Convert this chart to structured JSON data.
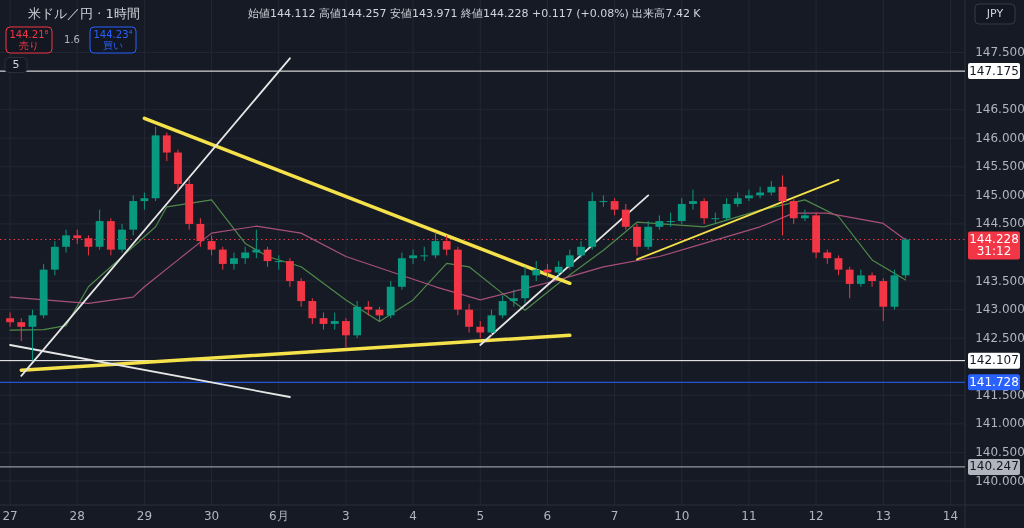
{
  "chart_data": {
    "type": "candlestick",
    "title": "米ドル／円 · 1時間",
    "annotations": [
      "始値144.112 高値144.257 安値143.971 終値144.228 +0.117 (+0.08%) 出来高7.42 K",
      "144.21⁸\n売り",
      "1.6",
      "144.23⁴\n買い",
      "5",
      "JPY"
    ],
    "categories": [
      "27",
      null,
      null,
      null,
      null,
      null,
      "28",
      null,
      null,
      null,
      null,
      null,
      "29",
      null,
      null,
      null,
      null,
      null,
      "30",
      null,
      null,
      null,
      null,
      null,
      "6月",
      null,
      null,
      null,
      null,
      null,
      "3",
      null,
      null,
      null,
      null,
      null,
      "4",
      null,
      null,
      null,
      null,
      null,
      "5",
      null,
      null,
      null,
      null,
      null,
      "6",
      null,
      null,
      null,
      null,
      null,
      "7",
      null,
      null,
      null,
      null,
      null,
      "10",
      null,
      null,
      null,
      null,
      null,
      "11",
      null,
      null,
      null,
      null,
      null,
      "12",
      null,
      null,
      null,
      null,
      null,
      "13",
      null,
      null,
      null,
      null,
      null,
      "14"
    ],
    "ohlc": [
      [
        142.85,
        142.95,
        142.7,
        142.78
      ],
      [
        142.78,
        142.85,
        142.45,
        142.7
      ],
      [
        142.7,
        143.0,
        142.11,
        142.9
      ],
      [
        142.9,
        143.8,
        142.85,
        143.7
      ],
      [
        143.7,
        144.2,
        143.6,
        144.1
      ],
      [
        144.1,
        144.4,
        144.0,
        144.3
      ],
      [
        144.3,
        144.4,
        144.15,
        144.25
      ],
      [
        144.25,
        144.3,
        143.95,
        144.1
      ],
      [
        144.1,
        144.75,
        144.05,
        144.55
      ],
      [
        144.55,
        144.6,
        143.95,
        144.05
      ],
      [
        144.05,
        144.5,
        144.0,
        144.4
      ],
      [
        144.4,
        145.0,
        144.3,
        144.9
      ],
      [
        144.9,
        145.05,
        144.75,
        144.95
      ],
      [
        144.95,
        146.2,
        144.9,
        146.05
      ],
      [
        146.05,
        146.1,
        145.6,
        145.75
      ],
      [
        145.75,
        145.8,
        145.1,
        145.2
      ],
      [
        145.2,
        145.3,
        144.4,
        144.5
      ],
      [
        144.5,
        144.6,
        144.1,
        144.2
      ],
      [
        144.2,
        144.3,
        143.95,
        144.05
      ],
      [
        144.05,
        144.1,
        143.7,
        143.8
      ],
      [
        143.8,
        144.0,
        143.7,
        143.9
      ],
      [
        143.9,
        144.1,
        143.8,
        144.0
      ],
      [
        144.0,
        144.4,
        143.9,
        144.05
      ],
      [
        144.05,
        144.1,
        143.75,
        143.85
      ],
      [
        143.85,
        143.95,
        143.7,
        143.85
      ],
      [
        143.85,
        143.9,
        143.4,
        143.5
      ],
      [
        143.5,
        143.55,
        143.05,
        143.15
      ],
      [
        143.15,
        143.2,
        142.75,
        142.85
      ],
      [
        142.85,
        142.95,
        142.65,
        142.75
      ],
      [
        142.75,
        142.95,
        142.65,
        142.8
      ],
      [
        142.8,
        142.85,
        142.34,
        142.55
      ],
      [
        142.55,
        143.15,
        142.5,
        143.05
      ],
      [
        143.05,
        143.15,
        142.9,
        143.0
      ],
      [
        143.0,
        143.05,
        142.8,
        142.9
      ],
      [
        142.9,
        143.5,
        142.85,
        143.4
      ],
      [
        143.4,
        144.0,
        143.35,
        143.9
      ],
      [
        143.9,
        144.05,
        143.8,
        143.95
      ],
      [
        143.95,
        144.1,
        143.85,
        143.95
      ],
      [
        143.95,
        144.35,
        143.9,
        144.2
      ],
      [
        144.2,
        144.3,
        143.95,
        144.05
      ],
      [
        144.05,
        144.1,
        142.9,
        143.0
      ],
      [
        143.0,
        143.1,
        142.6,
        142.7
      ],
      [
        142.7,
        142.8,
        142.5,
        142.6
      ],
      [
        142.6,
        143.0,
        142.55,
        142.9
      ],
      [
        142.9,
        143.25,
        142.85,
        143.15
      ],
      [
        143.15,
        143.35,
        143.05,
        143.2
      ],
      [
        143.2,
        143.75,
        143.1,
        143.6
      ],
      [
        143.6,
        143.85,
        143.5,
        143.7
      ],
      [
        143.7,
        143.8,
        143.55,
        143.65
      ],
      [
        143.65,
        143.85,
        143.6,
        143.75
      ],
      [
        143.75,
        144.05,
        143.7,
        143.95
      ],
      [
        143.95,
        144.2,
        143.9,
        144.1
      ],
      [
        144.1,
        145.05,
        144.05,
        144.9
      ],
      [
        144.9,
        145.0,
        144.8,
        144.9
      ],
      [
        144.9,
        144.95,
        144.65,
        144.75
      ],
      [
        144.75,
        144.85,
        144.4,
        144.45
      ],
      [
        144.45,
        144.5,
        143.95,
        144.1
      ],
      [
        144.1,
        144.55,
        144.05,
        144.45
      ],
      [
        144.45,
        144.65,
        144.4,
        144.55
      ],
      [
        144.55,
        144.7,
        144.45,
        144.55
      ],
      [
        144.55,
        144.95,
        144.5,
        144.85
      ],
      [
        144.85,
        145.1,
        144.75,
        144.9
      ],
      [
        144.9,
        144.95,
        144.5,
        144.6
      ],
      [
        144.6,
        144.7,
        144.5,
        144.6
      ],
      [
        144.6,
        144.95,
        144.55,
        144.85
      ],
      [
        144.85,
        145.05,
        144.8,
        144.95
      ],
      [
        144.95,
        145.1,
        144.9,
        145.0
      ],
      [
        145.0,
        145.15,
        144.95,
        145.05
      ],
      [
        145.05,
        145.25,
        145.0,
        145.15
      ],
      [
        145.15,
        145.35,
        144.3,
        144.9
      ],
      [
        144.9,
        144.95,
        144.5,
        144.6
      ],
      [
        144.6,
        144.75,
        144.55,
        144.65
      ],
      [
        144.65,
        144.7,
        143.9,
        144.0
      ],
      [
        144.0,
        144.05,
        143.8,
        143.9
      ],
      [
        143.9,
        143.95,
        143.6,
        143.7
      ],
      [
        143.7,
        143.75,
        143.2,
        143.45
      ],
      [
        143.45,
        143.7,
        143.4,
        143.6
      ],
      [
        143.6,
        143.65,
        143.4,
        143.5
      ],
      [
        143.5,
        143.55,
        142.8,
        143.05
      ],
      [
        143.05,
        143.7,
        143.0,
        143.6
      ],
      [
        143.6,
        144.257,
        143.55,
        144.228
      ],
      null,
      null,
      null,
      null
    ],
    "series": [
      {
        "type": "line",
        "color": "#4e8a4a",
        "values": [
          142.64,
          null,
          null,
          142.65,
          null,
          142.72,
          null,
          143.4,
          null,
          null,
          null,
          null,
          null,
          144.45,
          144.8,
          null,
          null,
          null,
          144.92,
          null,
          null,
          144.16,
          null,
          143.93,
          null,
          null,
          143.75,
          null,
          null,
          null,
          143.17,
          null,
          null,
          142.79,
          null,
          null,
          143.17,
          null,
          null,
          143.81,
          null,
          143.75,
          null,
          null,
          143.28,
          null,
          142.99,
          null,
          null,
          143.46,
          null,
          null,
          null,
          144.04,
          null,
          null,
          144.53,
          null,
          null,
          null,
          null,
          null,
          144.45,
          null,
          null,
          null,
          null,
          144.74,
          null,
          null,
          null,
          144.92,
          null,
          null,
          144.63,
          null,
          null,
          143.87,
          null,
          null,
          143.52,
          null,
          null,
          null,
          null
        ]
      },
      {
        "type": "line",
        "color": "#a8507a",
        "values": [
          143.22,
          null,
          null,
          null,
          null,
          null,
          null,
          143.11,
          null,
          null,
          null,
          143.22,
          143.4,
          null,
          null,
          143.87,
          null,
          null,
          144.34,
          null,
          null,
          null,
          144.46,
          null,
          null,
          null,
          144.34,
          null,
          null,
          null,
          143.93,
          null,
          null,
          null,
          null,
          null,
          null,
          null,
          143.4,
          null,
          null,
          null,
          143.17,
          null,
          null,
          null,
          null,
          null,
          null,
          143.52,
          null,
          null,
          null,
          143.75,
          null,
          null,
          null,
          null,
          143.93,
          null,
          null,
          null,
          144.16,
          null,
          null,
          null,
          null,
          144.45,
          null,
          null,
          144.69,
          null,
          null,
          144.69,
          null,
          null,
          null,
          null,
          144.51,
          null,
          144.22,
          null,
          null,
          null,
          null
        ]
      },
      {
        "type": "line",
        "color": "#f5e14a",
        "values": [
          null,
          null,
          null,
          null,
          null,
          null,
          null,
          null,
          null,
          null,
          null,
          null,
          146.35,
          null,
          null,
          null,
          null,
          null,
          null,
          null,
          null,
          null,
          null,
          null,
          null,
          null,
          null,
          null,
          null,
          null,
          null,
          null,
          null,
          null,
          null,
          null,
          null,
          null,
          null,
          null,
          null,
          null,
          null,
          null,
          null,
          null,
          null,
          null,
          null,
          null,
          143.46,
          null,
          null,
          null,
          null,
          null,
          null,
          null,
          null,
          null,
          null,
          null,
          null,
          null,
          null,
          null,
          null,
          null,
          null,
          null,
          null,
          null,
          null,
          null,
          null,
          null,
          null,
          null,
          null,
          null,
          null,
          null,
          null,
          null,
          null
        ]
      },
      {
        "type": "line",
        "color": "#f5e14a",
        "values": [
          null,
          141.94,
          null,
          null,
          null,
          null,
          null,
          null,
          null,
          null,
          null,
          null,
          null,
          null,
          null,
          null,
          null,
          null,
          null,
          null,
          null,
          null,
          null,
          null,
          null,
          null,
          null,
          null,
          null,
          null,
          null,
          null,
          null,
          null,
          null,
          null,
          null,
          null,
          null,
          null,
          null,
          null,
          null,
          null,
          null,
          null,
          null,
          null,
          null,
          null,
          142.55,
          null,
          null,
          null,
          null,
          null,
          null,
          null,
          null,
          null,
          null,
          null,
          null,
          null,
          null,
          null,
          null,
          null,
          null,
          null,
          null,
          null,
          null,
          null,
          null,
          null,
          null,
          null,
          null,
          null,
          null,
          null,
          null,
          null,
          null
        ]
      },
      {
        "type": "line",
        "color": "#f5e14a",
        "values": [
          null,
          null,
          null,
          null,
          null,
          null,
          null,
          null,
          null,
          null,
          null,
          null,
          null,
          null,
          null,
          null,
          null,
          null,
          null,
          null,
          null,
          null,
          null,
          null,
          null,
          null,
          null,
          null,
          null,
          null,
          null,
          null,
          null,
          null,
          null,
          null,
          null,
          null,
          null,
          null,
          null,
          null,
          null,
          null,
          null,
          null,
          null,
          null,
          null,
          null,
          null,
          null,
          null,
          null,
          null,
          null,
          143.88,
          null,
          null,
          null,
          null,
          null,
          null,
          null,
          null,
          null,
          null,
          null,
          null,
          null,
          null,
          null,
          null,
          null,
          145.27,
          null,
          null,
          null,
          null,
          null,
          null,
          null,
          null,
          null,
          null
        ]
      },
      {
        "type": "line",
        "color": "#e6e6e6",
        "values": [
          null,
          141.84,
          null,
          null,
          null,
          null,
          null,
          null,
          null,
          null,
          null,
          null,
          null,
          null,
          null,
          null,
          null,
          null,
          null,
          null,
          null,
          null,
          null,
          null,
          null,
          147.4,
          null,
          null,
          null,
          null,
          null,
          null,
          null,
          null,
          null,
          null,
          null,
          null,
          null,
          null,
          null,
          null,
          null,
          null,
          null,
          null,
          null,
          null,
          null,
          null,
          null,
          null,
          null,
          null,
          null,
          null,
          null,
          null,
          null,
          null,
          null,
          null,
          null,
          null,
          null,
          null,
          null,
          null,
          null,
          null,
          null,
          null,
          null,
          null,
          null,
          null,
          null,
          null,
          null,
          null,
          null,
          null,
          null,
          null,
          null
        ]
      },
      {
        "type": "line",
        "color": "#e6e6e6",
        "values": [
          142.38,
          null,
          null,
          null,
          null,
          null,
          null,
          null,
          null,
          null,
          null,
          null,
          null,
          null,
          null,
          null,
          null,
          null,
          null,
          null,
          null,
          null,
          null,
          null,
          null,
          141.47,
          null,
          null,
          null,
          null,
          null,
          null,
          null,
          null,
          null,
          null,
          null,
          null,
          null,
          null,
          null,
          null,
          null,
          null,
          null,
          null,
          null,
          null,
          null,
          null,
          null,
          null,
          null,
          null,
          null,
          null,
          null,
          null,
          null,
          null,
          null,
          null,
          null,
          null,
          null,
          null,
          null,
          null,
          null,
          null,
          null,
          null,
          null,
          null,
          null,
          null,
          null,
          null,
          null,
          null,
          null,
          null,
          null,
          null,
          null
        ]
      },
      {
        "type": "line",
        "color": "#e6e6e6",
        "values": [
          null,
          null,
          null,
          null,
          null,
          null,
          null,
          null,
          null,
          null,
          null,
          null,
          null,
          null,
          null,
          null,
          null,
          null,
          null,
          null,
          null,
          null,
          null,
          null,
          null,
          null,
          null,
          null,
          null,
          null,
          null,
          null,
          null,
          null,
          null,
          null,
          null,
          null,
          null,
          null,
          null,
          null,
          142.38,
          null,
          null,
          null,
          null,
          null,
          null,
          null,
          null,
          null,
          null,
          null,
          null,
          null,
          null,
          145.0,
          null,
          null,
          null,
          null,
          null,
          null,
          null,
          null,
          null,
          null,
          null,
          null,
          null,
          null,
          null,
          null,
          null,
          null,
          null,
          null,
          null,
          null,
          null,
          null,
          null,
          null,
          null
        ]
      }
    ],
    "ylim": [
      139.58,
      148.42
    ],
    "yticks": [
      {
        "value": 140.0,
        "label": "140.000"
      },
      {
        "value": 140.5,
        "label": "140.500"
      },
      {
        "value": 141.0,
        "label": "141.000"
      },
      {
        "value": 141.5,
        "label": "141.500"
      },
      {
        "value": 142.5,
        "label": "142.500"
      },
      {
        "value": 143.0,
        "label": "143.000"
      },
      {
        "value": 143.5,
        "label": "143.500"
      },
      {
        "value": 144.5,
        "label": "144.500"
      },
      {
        "value": 145.0,
        "label": "145.000"
      },
      {
        "value": 145.5,
        "label": "145.500"
      },
      {
        "value": 146.0,
        "label": "146.000"
      },
      {
        "value": 146.5,
        "label": "146.500"
      },
      {
        "value": 147.5,
        "label": "147.500"
      }
    ],
    "ref_lines": [
      {
        "axis": "y",
        "value": 147.175,
        "label": "147.175",
        "color": "#ffffff"
      },
      {
        "axis": "y",
        "value": 142.107,
        "label": "142.107",
        "color": "#ffffff"
      },
      {
        "axis": "y",
        "value": 141.728,
        "label": "141.728",
        "color": "#2962ff"
      },
      {
        "axis": "y",
        "value": 140.247,
        "label": "140.247",
        "color": "#b2b5be"
      },
      {
        "axis": "y",
        "value": 144.228,
        "label": "144.228\n31:12",
        "color": "#f23645",
        "line_style": "dotted"
      }
    ],
    "grid": true
  }
}
